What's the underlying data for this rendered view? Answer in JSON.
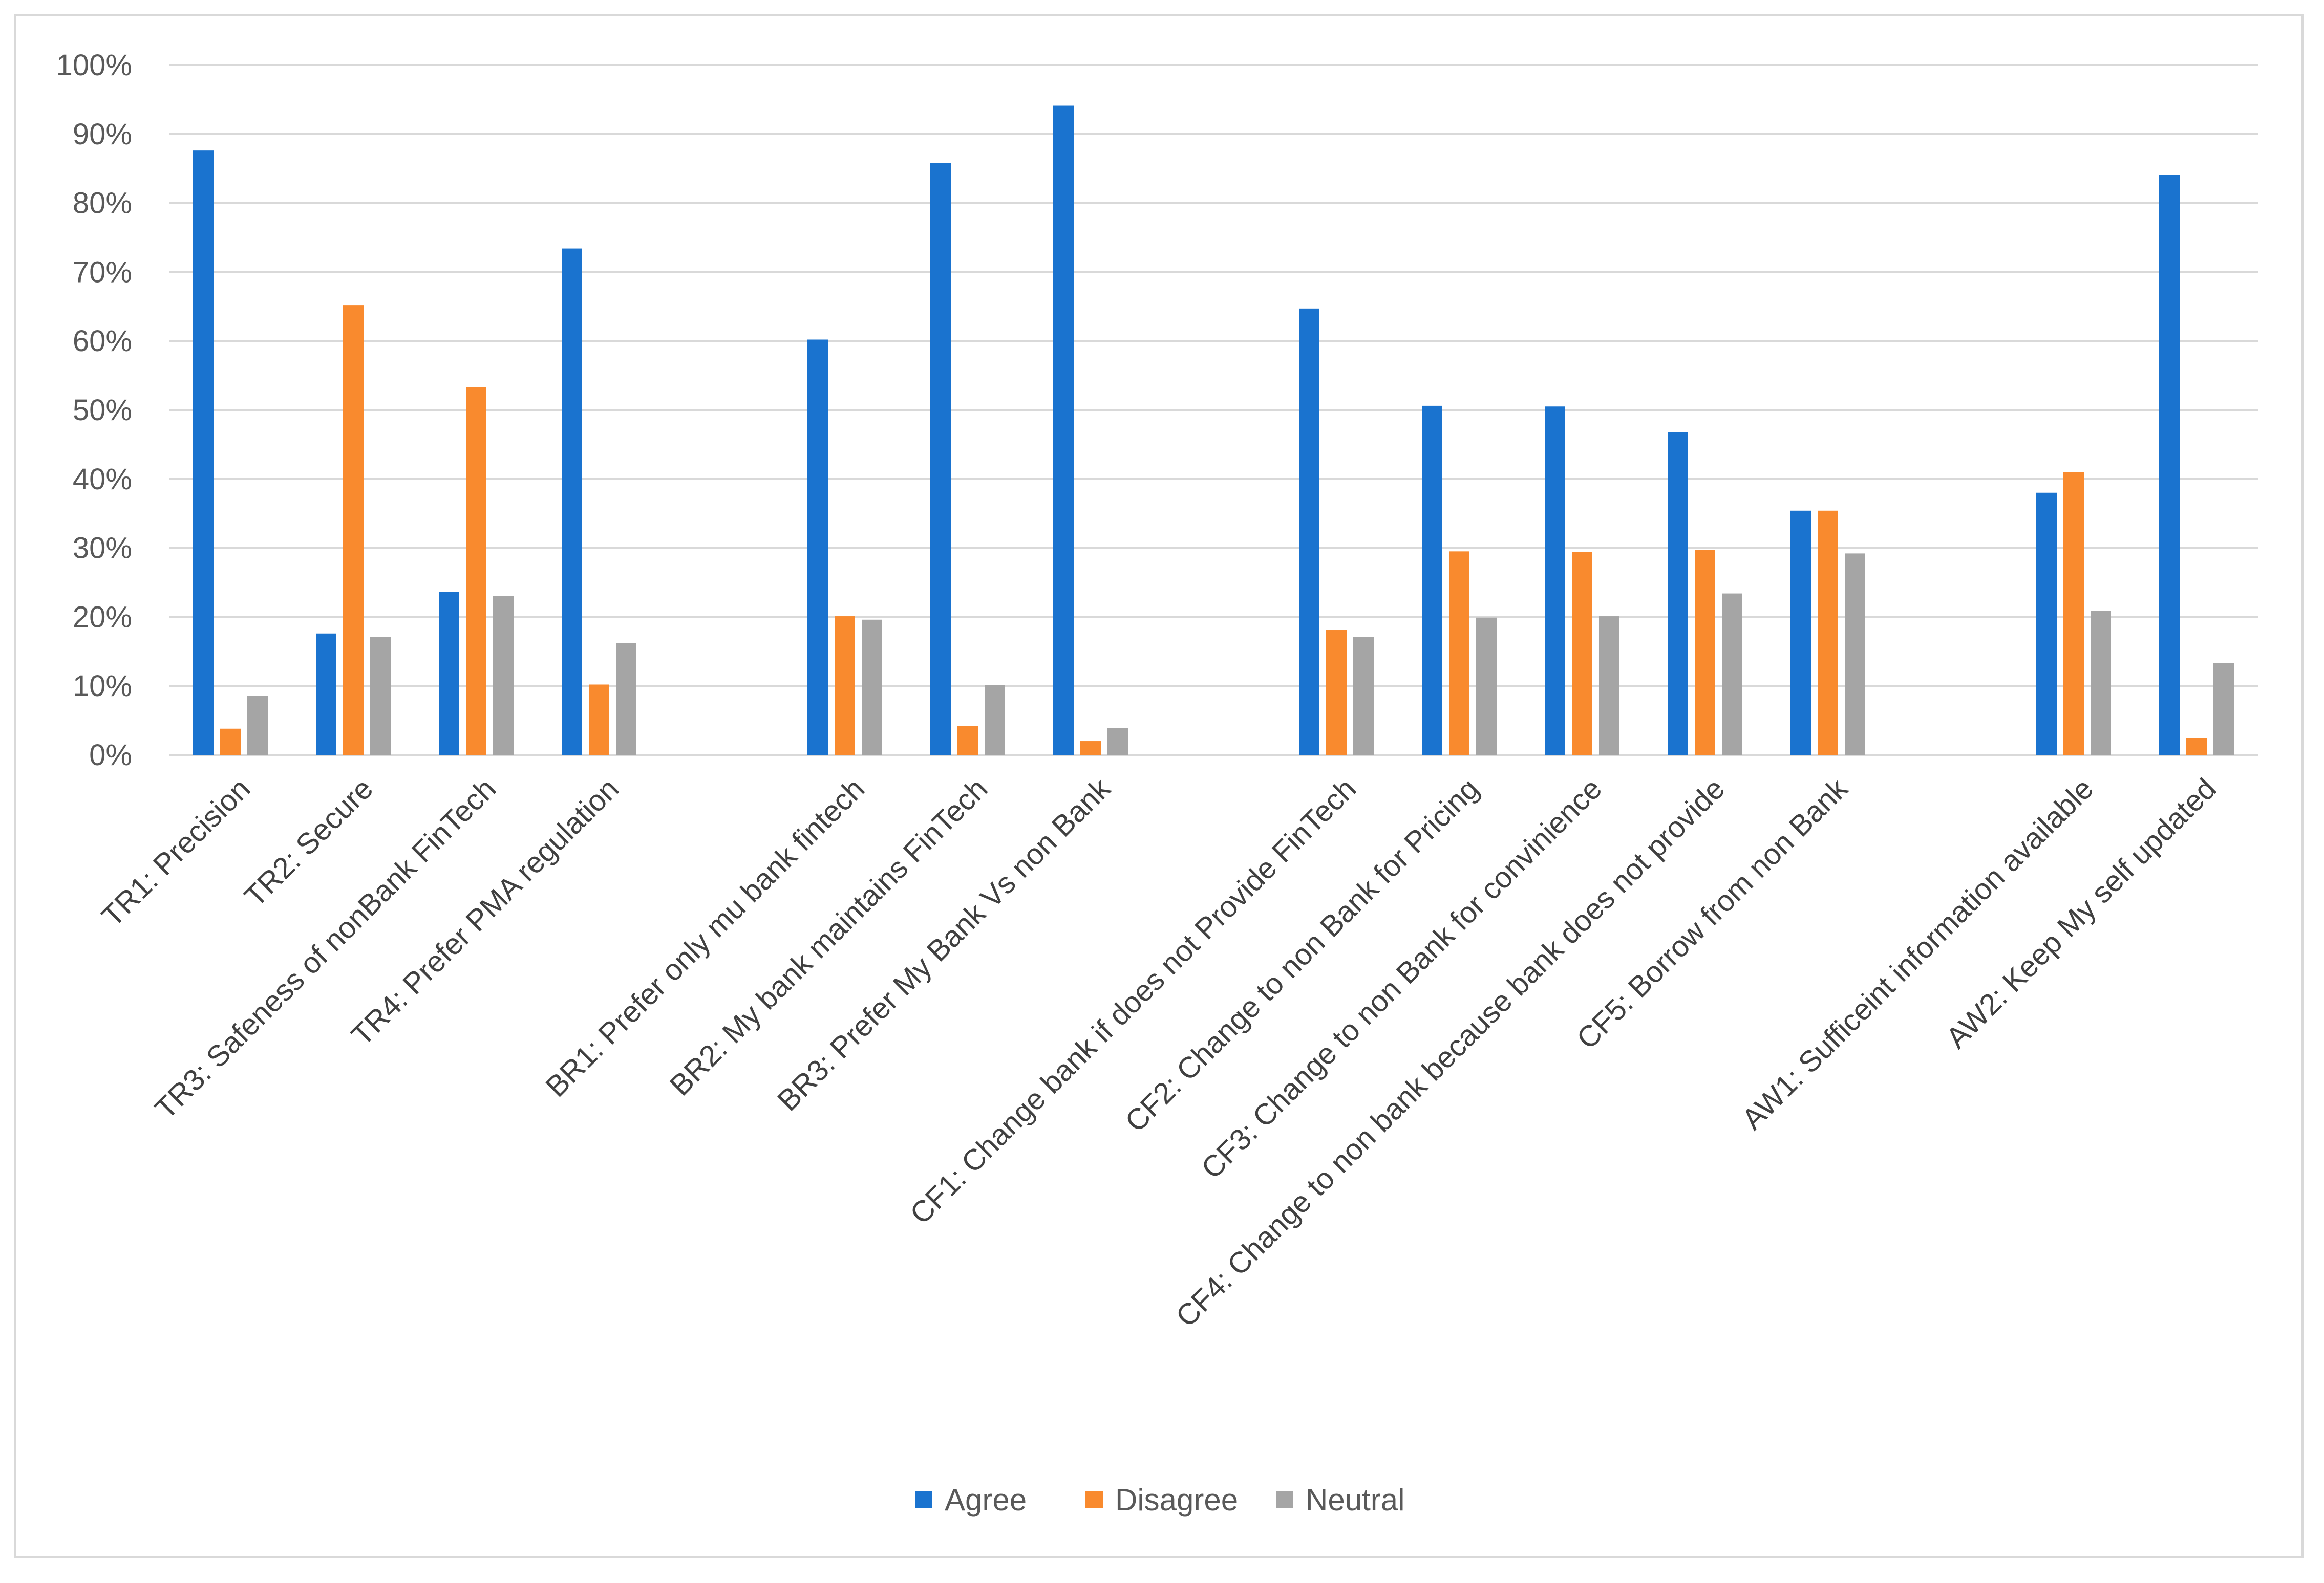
{
  "chart_data": {
    "type": "bar",
    "title": "",
    "xlabel": "",
    "ylabel": "",
    "ylim": [
      0,
      100
    ],
    "yticks": [
      "0%",
      "10%",
      "20%",
      "30%",
      "40%",
      "50%",
      "60%",
      "70%",
      "80%",
      "90%",
      "100%"
    ],
    "grid": true,
    "legend_position": "bottom",
    "categories": [
      "TR1: Precision",
      "TR2: Secure",
      "TR3: Safeness of nonBank FinTech",
      "TR4: Prefer PMA regulation",
      "",
      "BR1: Prefer only mu bank fintech",
      "BR2: My bank maintains FinTech",
      "BR3: Prefer My Bank Vs non Bank",
      "",
      "CF1: Change bank if does not Provide FinTech",
      "CF2: Change to non Bank for Pricing",
      "CF3: Change to non Bank for convinience",
      "CF4: Change to non bank because bank does not provide",
      "CF5: Borrow from non Bank",
      "",
      "AW1: Sufficeint information available",
      "AW2: Keep My self updated"
    ],
    "series": [
      {
        "name": "Agree",
        "color": "#1a73cf",
        "values": [
          87.6,
          17.6,
          23.6,
          73.4,
          null,
          60.2,
          85.8,
          94.1,
          null,
          64.7,
          50.6,
          50.5,
          46.8,
          35.4,
          null,
          38.0,
          84.1
        ]
      },
      {
        "name": "Disagree",
        "color": "#f98a2e",
        "values": [
          3.8,
          65.2,
          53.3,
          10.2,
          null,
          20.1,
          4.2,
          2.0,
          null,
          18.1,
          29.5,
          29.4,
          29.7,
          35.4,
          null,
          41.0,
          2.5
        ]
      },
      {
        "name": "Neutral",
        "color": "#a5a5a5",
        "values": [
          8.6,
          17.1,
          23.0,
          16.2,
          null,
          19.6,
          10.1,
          3.9,
          null,
          17.1,
          19.9,
          20.1,
          23.4,
          29.2,
          null,
          20.9,
          13.3
        ]
      }
    ]
  }
}
